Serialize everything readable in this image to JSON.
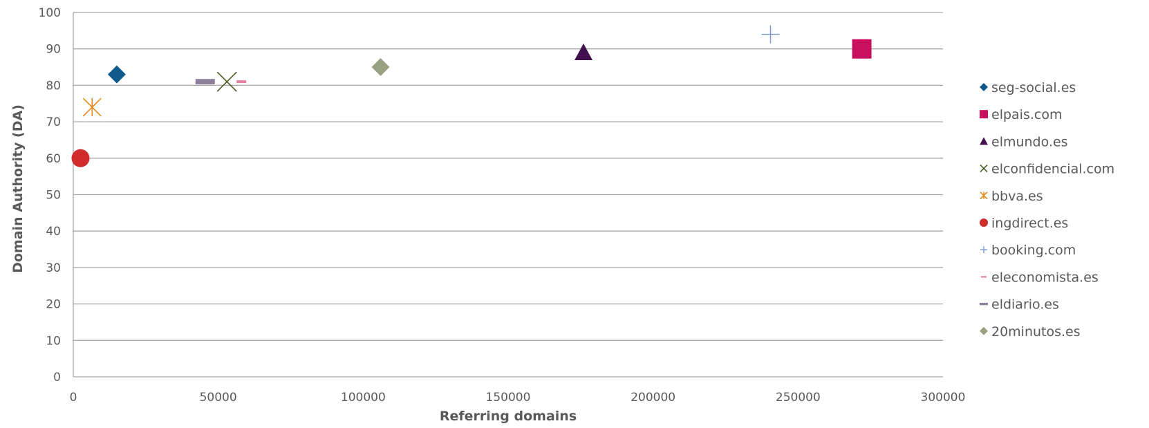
{
  "chart_data": {
    "type": "scatter",
    "xlabel": "Referring domains",
    "ylabel": "Domain Authority (DA)",
    "xlim": [
      0,
      300000
    ],
    "ylim": [
      0,
      100
    ],
    "x_ticks": [
      0,
      50000,
      100000,
      150000,
      200000,
      250000,
      300000
    ],
    "y_ticks": [
      0,
      10,
      20,
      30,
      40,
      50,
      60,
      70,
      80,
      90,
      100
    ],
    "grid": "horizontal",
    "legend_position": "right",
    "series": [
      {
        "name": "seg-social.es",
        "x": 15000,
        "y": 83,
        "marker": "diamond",
        "color": "#0e5a8a"
      },
      {
        "name": "elpais.com",
        "x": 272000,
        "y": 90,
        "marker": "square",
        "color": "#c8105f"
      },
      {
        "name": "elmundo.es",
        "x": 176000,
        "y": 89,
        "marker": "triangle",
        "color": "#40104f"
      },
      {
        "name": "elconfidencial.com",
        "x": 53000,
        "y": 81,
        "marker": "x",
        "color": "#4a5d23"
      },
      {
        "name": "bbva.es",
        "x": 6500,
        "y": 74,
        "marker": "asterisk",
        "color": "#e38a1a"
      },
      {
        "name": "ingdirect.es",
        "x": 2500,
        "y": 60,
        "marker": "circle",
        "color": "#d12c2c"
      },
      {
        "name": "booking.com",
        "x": 240500,
        "y": 94,
        "marker": "plus",
        "color": "#7c94c9"
      },
      {
        "name": "eleconomista.es",
        "x": 58000,
        "y": 81,
        "marker": "dash",
        "color": "#e77fa0"
      },
      {
        "name": "eldiario.es",
        "x": 45500,
        "y": 81,
        "marker": "dash",
        "color": "#8e7f98"
      },
      {
        "name": "20minutos.es",
        "x": 106000,
        "y": 85,
        "marker": "diamond",
        "color": "#9aa182"
      }
    ]
  }
}
